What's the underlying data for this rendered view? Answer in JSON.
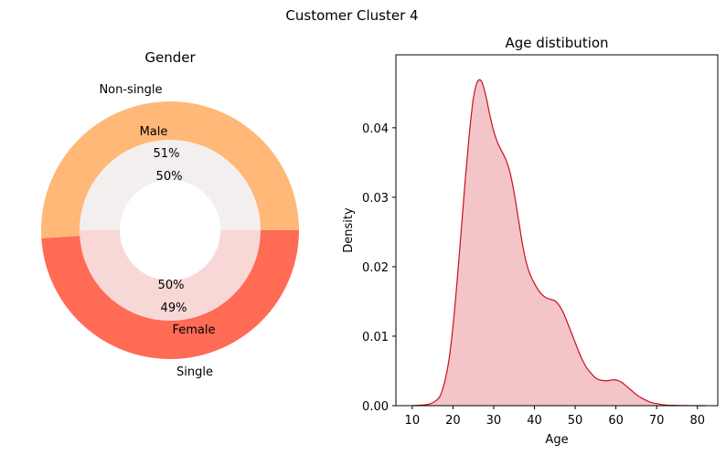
{
  "suptitle": "Customer Cluster 4",
  "chart_data": [
    {
      "type": "pie",
      "style": "nested-donut",
      "title": "Gender",
      "outer": {
        "slices": [
          {
            "label": "Non-single",
            "value": 51,
            "pct_label": "51%",
            "color": "#FFB878"
          },
          {
            "label": "Single",
            "value": 49,
            "pct_label": "49%",
            "color": "#FF6B55"
          }
        ]
      },
      "inner": {
        "slices": [
          {
            "label": "Male",
            "value": 50,
            "pct_label": "50%",
            "color": "#F3EFEE"
          },
          {
            "label": "Female",
            "value": 50,
            "pct_label": "50%",
            "color": "#F8D8D6"
          }
        ]
      }
    },
    {
      "type": "area",
      "title": "Age distibution",
      "xlabel": "Age",
      "ylabel": "Density",
      "xlim": [
        6,
        85
      ],
      "ylim": [
        0,
        0.0505
      ],
      "xticks": [
        10,
        20,
        30,
        40,
        50,
        60,
        70,
        80
      ],
      "yticks": [
        0.0,
        0.01,
        0.02,
        0.03,
        0.04
      ],
      "ytick_labels": [
        "0.00",
        "0.01",
        "0.02",
        "0.03",
        "0.04"
      ],
      "line_color": "#C8101E",
      "fill_color": "#F3C5C8",
      "x": [
        10,
        14,
        16,
        17,
        18,
        19,
        20,
        21,
        22,
        23,
        24,
        25,
        26,
        27,
        28,
        29,
        30,
        31,
        32,
        33,
        34,
        35,
        36,
        37,
        38,
        39,
        40,
        41,
        42,
        43,
        44,
        45,
        46,
        47,
        48,
        49,
        50,
        51,
        52,
        53,
        54,
        55,
        56,
        57,
        58,
        59,
        60,
        61,
        62,
        63,
        64,
        65,
        66,
        67,
        68,
        69,
        70,
        72,
        74,
        76,
        78,
        80,
        82
      ],
      "y": [
        0.0,
        0.0002,
        0.0008,
        0.0016,
        0.0035,
        0.0065,
        0.0114,
        0.0178,
        0.025,
        0.0324,
        0.039,
        0.0442,
        0.0466,
        0.0467,
        0.0448,
        0.042,
        0.0395,
        0.0378,
        0.0366,
        0.0354,
        0.0336,
        0.0307,
        0.0271,
        0.0235,
        0.0206,
        0.0188,
        0.0176,
        0.0166,
        0.0159,
        0.0155,
        0.0153,
        0.0151,
        0.0145,
        0.0135,
        0.0121,
        0.0106,
        0.0091,
        0.0076,
        0.0063,
        0.0053,
        0.0046,
        0.004,
        0.0037,
        0.0036,
        0.0036,
        0.0037,
        0.0037,
        0.0035,
        0.0031,
        0.0026,
        0.0021,
        0.0016,
        0.0012,
        0.0009,
        0.0006,
        0.0004,
        0.0003,
        0.0001,
        5e-05,
        2e-05,
        1e-05,
        0.0,
        0.0
      ]
    }
  ]
}
